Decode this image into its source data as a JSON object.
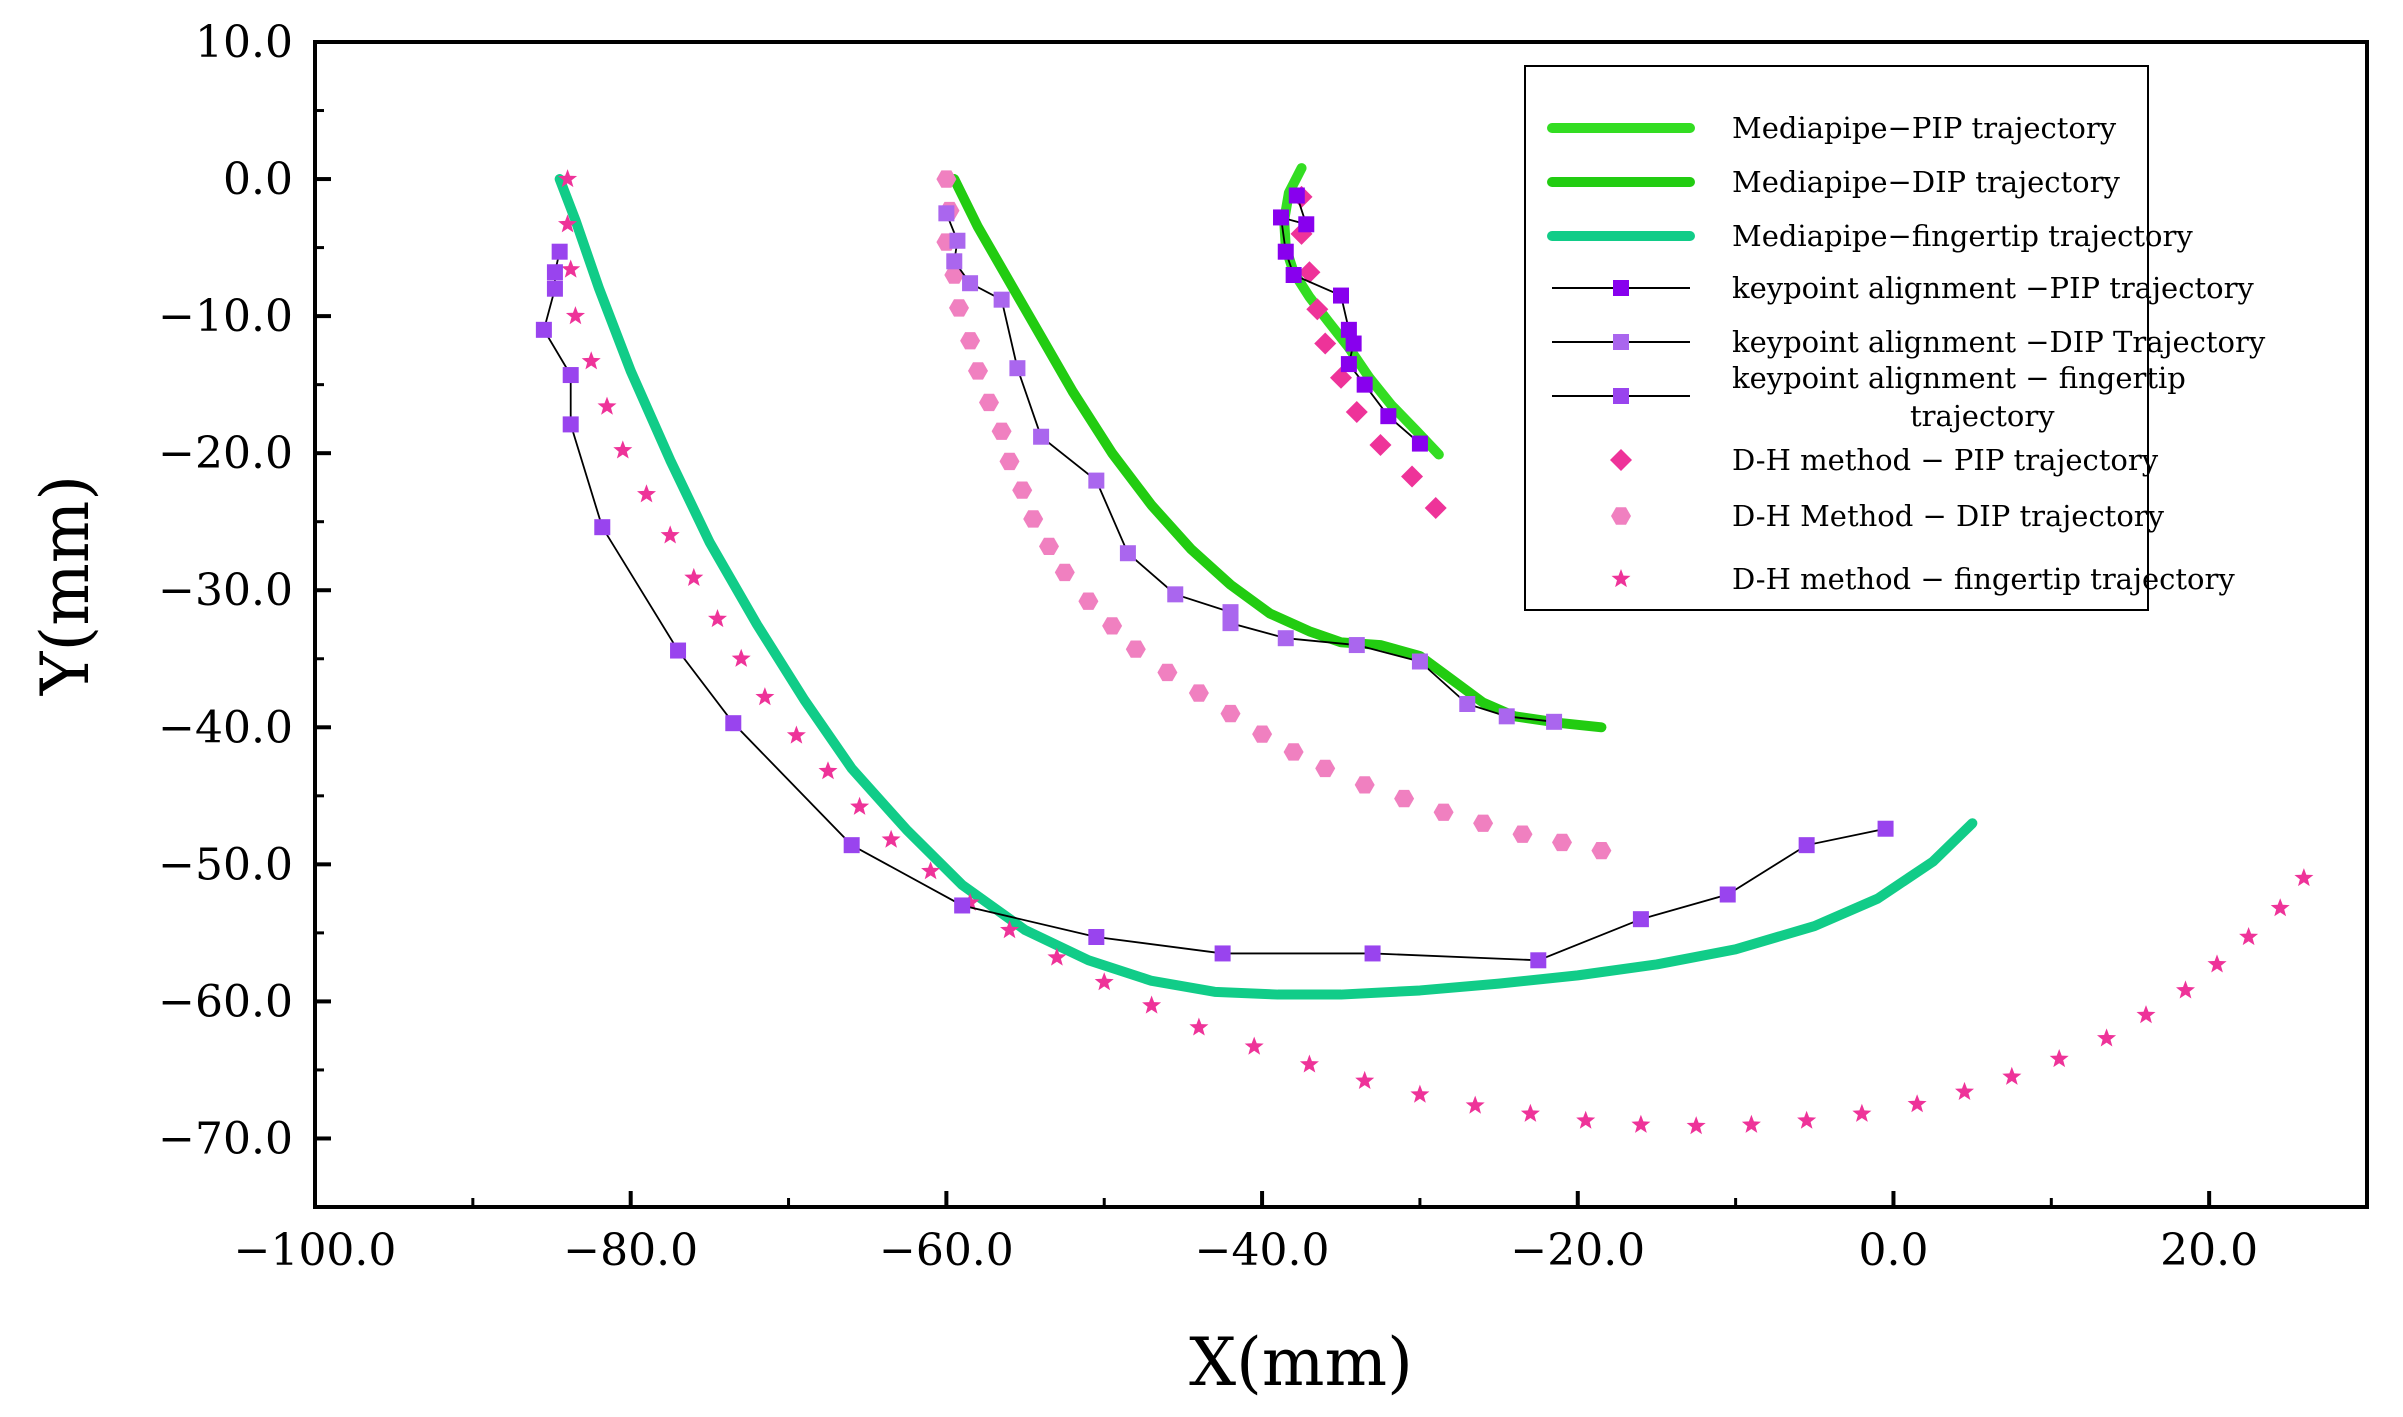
{
  "chart_data": {
    "type": "scatter",
    "title": "",
    "xlabel": "X(mm)",
    "ylabel": "Y(mm)",
    "xlim": [
      -100,
      30
    ],
    "ylim": [
      -75,
      10
    ],
    "grid": false,
    "legend_position": "top-right",
    "x_ticks": [
      {
        "value": -100,
        "label": "-100.0"
      },
      {
        "value": -80,
        "label": "-80.0"
      },
      {
        "value": -60,
        "label": "-60.0"
      },
      {
        "value": -40,
        "label": "-40.0"
      },
      {
        "value": -20,
        "label": "-20.0"
      },
      {
        "value": 0,
        "label": "0.0"
      },
      {
        "value": 20,
        "label": "20.0"
      }
    ],
    "y_ticks": [
      {
        "value": 10,
        "label": "10.0"
      },
      {
        "value": 0,
        "label": "0.0"
      },
      {
        "value": -10,
        "label": "-10.0"
      },
      {
        "value": -20,
        "label": "-20.0"
      },
      {
        "value": -30,
        "label": "-30.0"
      },
      {
        "value": -40,
        "label": "-40.0"
      },
      {
        "value": -50,
        "label": "-50.0"
      },
      {
        "value": -60,
        "label": "-60.0"
      },
      {
        "value": -70,
        "label": "-70.0"
      }
    ],
    "series": [
      {
        "name": "Mediapipe−PIP trajectory",
        "legend_lines": [
          "Mediapipe−PIP trajectory"
        ],
        "style": "line",
        "color": "#33dd22",
        "points": [
          [
            -37.5,
            0.8
          ],
          [
            -38.3,
            -1.0
          ],
          [
            -38.6,
            -3.0
          ],
          [
            -38.5,
            -5.0
          ],
          [
            -38.0,
            -6.8
          ],
          [
            -37.0,
            -8.6
          ],
          [
            -35.8,
            -10.4
          ],
          [
            -34.5,
            -12.3
          ],
          [
            -33.2,
            -14.5
          ],
          [
            -31.8,
            -16.5
          ],
          [
            -30.2,
            -18.4
          ],
          [
            -28.8,
            -20.1
          ]
        ]
      },
      {
        "name": "Mediapipe−DIP trajectory",
        "legend_lines": [
          "Mediapipe−DIP trajectory"
        ],
        "style": "line",
        "color": "#22cc11",
        "points": [
          [
            -59.5,
            0
          ],
          [
            -58.0,
            -3.5
          ],
          [
            -56.0,
            -7.5
          ],
          [
            -54.0,
            -11.5
          ],
          [
            -52.0,
            -15.5
          ],
          [
            -49.5,
            -20.0
          ],
          [
            -47.0,
            -23.8
          ],
          [
            -44.5,
            -27.0
          ],
          [
            -42.0,
            -29.6
          ],
          [
            -39.5,
            -31.7
          ],
          [
            -37.0,
            -33.0
          ],
          [
            -35.0,
            -33.8
          ],
          [
            -32.5,
            -34.0
          ],
          [
            -30.0,
            -34.8
          ],
          [
            -28.0,
            -36.5
          ],
          [
            -26.0,
            -38.2
          ],
          [
            -24.0,
            -39.2
          ],
          [
            -21.0,
            -39.7
          ],
          [
            -18.5,
            -40.0
          ]
        ]
      },
      {
        "name": "Mediapipe−fingertip trajectory",
        "legend_lines": [
          "Mediapipe−fingertip trajectory"
        ],
        "style": "line",
        "color": "#11cc88",
        "points": [
          [
            -84.5,
            0
          ],
          [
            -83.5,
            -3
          ],
          [
            -82.0,
            -8
          ],
          [
            -80.0,
            -14
          ],
          [
            -77.5,
            -20.5
          ],
          [
            -75.0,
            -26.5
          ],
          [
            -72.0,
            -32.5
          ],
          [
            -69.0,
            -38.0
          ],
          [
            -66.0,
            -43.0
          ],
          [
            -62.5,
            -47.5
          ],
          [
            -59.0,
            -51.5
          ],
          [
            -55.0,
            -54.8
          ],
          [
            -51.0,
            -57.0
          ],
          [
            -47.0,
            -58.5
          ],
          [
            -43.0,
            -59.3
          ],
          [
            -39.0,
            -59.5
          ],
          [
            -35.0,
            -59.5
          ],
          [
            -30.0,
            -59.2
          ],
          [
            -25.0,
            -58.7
          ],
          [
            -20.0,
            -58.1
          ],
          [
            -15.0,
            -57.3
          ],
          [
            -10.0,
            -56.2
          ],
          [
            -5.0,
            -54.5
          ],
          [
            -1.0,
            -52.5
          ],
          [
            2.5,
            -49.8
          ],
          [
            5.0,
            -47.0
          ]
        ]
      },
      {
        "name": "keypoint alignment −PIP trajectory",
        "legend_lines": [
          "keypoint alignment −PIP trajectory"
        ],
        "style": "line-marker",
        "marker": "square",
        "color": "#8800ee",
        "points": [
          [
            -37.8,
            -1.2
          ],
          [
            -37.2,
            -3.3
          ],
          [
            -38.8,
            -2.8
          ],
          [
            -38.5,
            -5.3
          ],
          [
            -38.0,
            -7.0
          ],
          [
            -35.0,
            -8.5
          ],
          [
            -34.5,
            -11.0
          ],
          [
            -34.2,
            -12.0
          ],
          [
            -34.5,
            -13.5
          ],
          [
            -33.5,
            -15.0
          ],
          [
            -32.0,
            -17.3
          ],
          [
            -30.0,
            -19.3
          ]
        ]
      },
      {
        "name": "keypoint alignment −DIP Trajectory",
        "legend_lines": [
          "keypoint alignment −DIP Trajectory"
        ],
        "style": "line-marker",
        "marker": "square",
        "color": "#aa66ee",
        "points": [
          [
            -60.0,
            -2.5
          ],
          [
            -59.3,
            -4.5
          ],
          [
            -59.5,
            -6.0
          ],
          [
            -58.5,
            -7.6
          ],
          [
            -56.5,
            -8.8
          ],
          [
            -55.5,
            -13.8
          ],
          [
            -54.0,
            -18.8
          ],
          [
            -50.5,
            -22.0
          ],
          [
            -48.5,
            -27.3
          ],
          [
            -45.5,
            -30.3
          ],
          [
            -42.0,
            -31.6
          ],
          [
            -42.0,
            -32.4
          ],
          [
            -38.5,
            -33.5
          ],
          [
            -34.0,
            -34.0
          ],
          [
            -30.0,
            -35.2
          ],
          [
            -27.0,
            -38.3
          ],
          [
            -24.5,
            -39.2
          ],
          [
            -21.5,
            -39.6
          ]
        ]
      },
      {
        "name": "keypoint alignment − fingertip trajectory",
        "legend_lines": [
          "keypoint alignment − fingertip",
          "trajectory"
        ],
        "style": "line-marker",
        "marker": "square",
        "color": "#9944ee",
        "points": [
          [
            -84.5,
            -5.3
          ],
          [
            -84.8,
            -6.8
          ],
          [
            -84.8,
            -8.0
          ],
          [
            -85.5,
            -11.0
          ],
          [
            -83.8,
            -14.3
          ],
          [
            -83.8,
            -17.9
          ],
          [
            -81.8,
            -25.4
          ],
          [
            -77.0,
            -34.4
          ],
          [
            -73.5,
            -39.7
          ],
          [
            -66.0,
            -48.6
          ],
          [
            -59.0,
            -53.0
          ],
          [
            -50.5,
            -55.3
          ],
          [
            -42.5,
            -56.5
          ],
          [
            -33.0,
            -56.5
          ],
          [
            -22.5,
            -57.0
          ],
          [
            -16.0,
            -54.0
          ],
          [
            -10.5,
            -52.2
          ],
          [
            -5.5,
            -48.6
          ],
          [
            -0.5,
            -47.4
          ]
        ]
      },
      {
        "name": "D-H method − PIP trajectory",
        "legend_lines": [
          "D-H method − PIP trajectory"
        ],
        "style": "marker",
        "marker": "diamond",
        "color": "#ee3399",
        "points": [
          [
            -37.5,
            -1.3
          ],
          [
            -37.5,
            -4.0
          ],
          [
            -37.0,
            -6.8
          ],
          [
            -36.5,
            -9.5
          ],
          [
            -36.0,
            -12.0
          ],
          [
            -35.0,
            -14.5
          ],
          [
            -34.0,
            -17.0
          ],
          [
            -32.5,
            -19.4
          ],
          [
            -30.5,
            -21.7
          ],
          [
            -29.0,
            -24.0
          ]
        ]
      },
      {
        "name": "D-H Method − DIP trajectory",
        "legend_lines": [
          "D-H Method − DIP trajectory"
        ],
        "style": "marker",
        "marker": "hexagon",
        "color": "#f080c0",
        "points": [
          [
            -60.0,
            0
          ],
          [
            -59.8,
            -2.3
          ],
          [
            -60.0,
            -4.6
          ],
          [
            -59.5,
            -7.0
          ],
          [
            -59.2,
            -9.4
          ],
          [
            -58.5,
            -11.8
          ],
          [
            -58.0,
            -14.0
          ],
          [
            -57.3,
            -16.3
          ],
          [
            -56.5,
            -18.4
          ],
          [
            -56.0,
            -20.6
          ],
          [
            -55.2,
            -22.7
          ],
          [
            -54.5,
            -24.8
          ],
          [
            -53.5,
            -26.8
          ],
          [
            -52.5,
            -28.7
          ],
          [
            -51.0,
            -30.8
          ],
          [
            -49.5,
            -32.6
          ],
          [
            -48.0,
            -34.3
          ],
          [
            -46.0,
            -36.0
          ],
          [
            -44.0,
            -37.5
          ],
          [
            -42.0,
            -39.0
          ],
          [
            -40.0,
            -40.5
          ],
          [
            -38.0,
            -41.8
          ],
          [
            -36.0,
            -43.0
          ],
          [
            -33.5,
            -44.2
          ],
          [
            -31.0,
            -45.2
          ],
          [
            -28.5,
            -46.2
          ],
          [
            -26.0,
            -47.0
          ],
          [
            -23.5,
            -47.8
          ],
          [
            -21.0,
            -48.4
          ],
          [
            -18.5,
            -49.0
          ]
        ]
      },
      {
        "name": "D-H method − fingertip trajectory",
        "legend_lines": [
          "D-H method − fingertip trajectory"
        ],
        "style": "marker",
        "marker": "star",
        "color": "#ee3399",
        "points": [
          [
            -84.0,
            0
          ],
          [
            -84.0,
            -3.3
          ],
          [
            -83.8,
            -6.6
          ],
          [
            -83.5,
            -10.0
          ],
          [
            -82.5,
            -13.3
          ],
          [
            -81.5,
            -16.6
          ],
          [
            -80.5,
            -19.8
          ],
          [
            -79.0,
            -23.0
          ],
          [
            -77.5,
            -26.0
          ],
          [
            -76.0,
            -29.1
          ],
          [
            -74.5,
            -32.1
          ],
          [
            -73.0,
            -35.0
          ],
          [
            -71.5,
            -37.8
          ],
          [
            -69.5,
            -40.6
          ],
          [
            -67.5,
            -43.2
          ],
          [
            -65.5,
            -45.8
          ],
          [
            -63.5,
            -48.2
          ],
          [
            -61.0,
            -50.5
          ],
          [
            -58.5,
            -52.8
          ],
          [
            -56.0,
            -54.8
          ],
          [
            -53.0,
            -56.8
          ],
          [
            -50.0,
            -58.6
          ],
          [
            -47.0,
            -60.3
          ],
          [
            -44.0,
            -61.9
          ],
          [
            -40.5,
            -63.3
          ],
          [
            -37.0,
            -64.6
          ],
          [
            -33.5,
            -65.8
          ],
          [
            -30.0,
            -66.8
          ],
          [
            -26.5,
            -67.6
          ],
          [
            -23.0,
            -68.2
          ],
          [
            -19.5,
            -68.7
          ],
          [
            -16.0,
            -69.0
          ],
          [
            -12.5,
            -69.1
          ],
          [
            -9.0,
            -69.0
          ],
          [
            -5.5,
            -68.7
          ],
          [
            -2.0,
            -68.2
          ],
          [
            1.5,
            -67.5
          ],
          [
            4.5,
            -66.6
          ],
          [
            7.5,
            -65.5
          ],
          [
            10.5,
            -64.2
          ],
          [
            13.5,
            -62.7
          ],
          [
            16.0,
            -61.0
          ],
          [
            18.5,
            -59.2
          ],
          [
            20.5,
            -57.3
          ],
          [
            22.5,
            -55.3
          ],
          [
            24.5,
            -53.2
          ],
          [
            26.0,
            -51.0
          ]
        ]
      }
    ]
  }
}
